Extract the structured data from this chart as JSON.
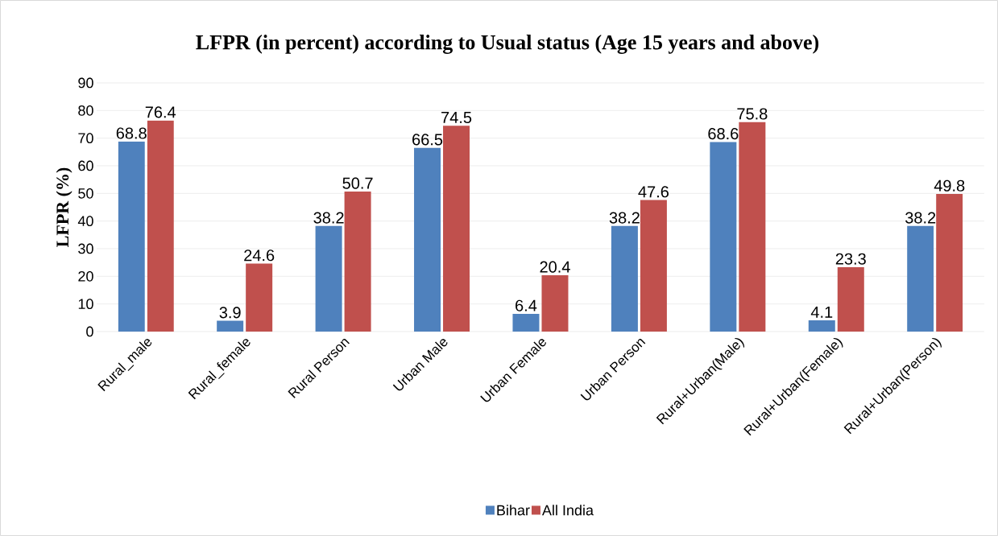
{
  "chart_data": {
    "type": "bar",
    "title": "LFPR (in percent) according to Usual status (Age 15 years and above)",
    "ylabel": "LFPR (%)",
    "categories": [
      "Rural_male",
      "Rural_female",
      "Rural Person",
      "Urban Male",
      "Urban Female",
      "Urban Person",
      "Rural+Urban(Male)",
      "Rural+Urban(Female)",
      "Rural+Urban(Person)"
    ],
    "series": [
      {
        "name": "Bihar",
        "color": "#4f81bd",
        "values": [
          68.8,
          3.9,
          38.2,
          66.5,
          6.4,
          38.2,
          68.6,
          4.1,
          38.2
        ]
      },
      {
        "name": "All India",
        "color": "#c0504d",
        "values": [
          76.4,
          24.6,
          50.7,
          74.5,
          20.4,
          47.6,
          75.8,
          23.3,
          49.8
        ]
      }
    ],
    "ylim": [
      0,
      90
    ],
    "yticks": [
      0,
      10,
      20,
      30,
      40,
      50,
      60,
      70,
      80,
      90
    ],
    "grid": "y",
    "legend": "bottom",
    "data_labels": true
  }
}
